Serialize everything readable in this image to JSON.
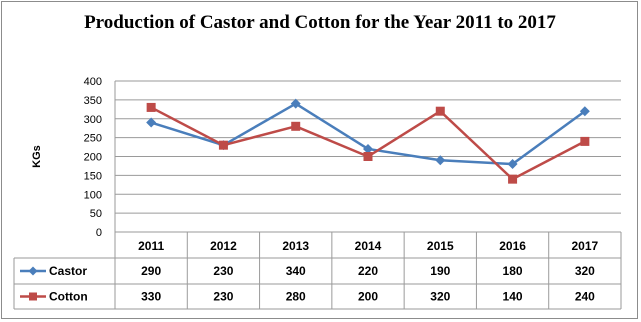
{
  "chart_data": {
    "type": "line",
    "title": "Production of Castor and Cotton for the Year 2011 to 2017",
    "xlabel": "",
    "ylabel": "KGs",
    "categories": [
      "2011",
      "2012",
      "2013",
      "2014",
      "2015",
      "2016",
      "2017"
    ],
    "y_ticks": [
      0,
      50,
      100,
      150,
      200,
      250,
      300,
      350,
      400
    ],
    "ylim": [
      0,
      400
    ],
    "grid": true,
    "legend": "data-table-left",
    "series": [
      {
        "name": "Castor",
        "values": [
          290,
          230,
          340,
          220,
          190,
          180,
          320
        ],
        "color": "#4a7ebb",
        "marker": "diamond"
      },
      {
        "name": "Cotton",
        "values": [
          330,
          230,
          280,
          200,
          320,
          140,
          240
        ],
        "color": "#be4b48",
        "marker": "square"
      }
    ]
  }
}
